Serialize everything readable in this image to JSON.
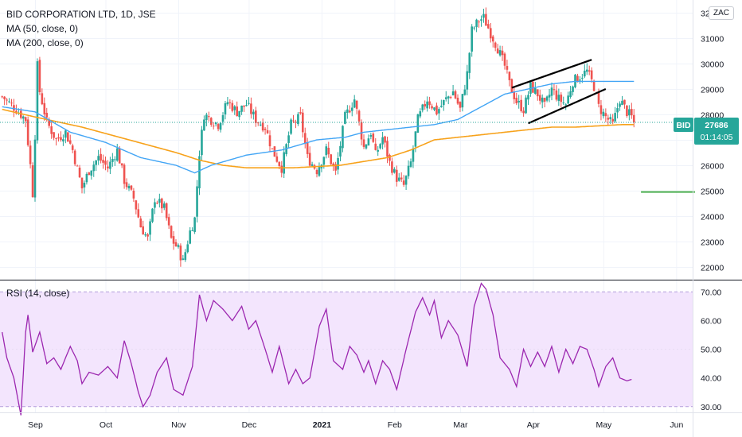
{
  "header": {
    "title": "BID CORPORATION LTD, 1D, JSE",
    "ma50": "MA (50, close, 0)",
    "ma200": "MA (200, close, 0)",
    "currency": "ZAC"
  },
  "price_tag": {
    "symbol": "BID",
    "price": "27686",
    "countdown": "01:14:05",
    "color": "#26a69a"
  },
  "rsi_panel": {
    "label": "RSI (14, close)"
  },
  "colors": {
    "up": "#26a69a",
    "down": "#ef5350",
    "ma50": "#42a5f5",
    "ma200": "#f7a21b",
    "rsi": "#9c27b0",
    "rsi_band": "#f3e5fd",
    "target_line": "#4caf50"
  },
  "chart_data": [
    {
      "type": "candlestick",
      "title": "BID CORPORATION LTD, 1D, JSE",
      "ylim": [
        21500,
        32500
      ],
      "y_ticks": [
        22000,
        23000,
        24000,
        25000,
        26000,
        27000,
        28000,
        29000,
        30000,
        31000,
        32000
      ],
      "x_ticks": [
        {
          "label": "Sep",
          "day": 0,
          "bold": false
        },
        {
          "label": "Oct",
          "day": 30,
          "bold": false
        },
        {
          "label": "Nov",
          "day": 61,
          "bold": false
        },
        {
          "label": "Dec",
          "day": 91,
          "bold": false
        },
        {
          "label": "2021",
          "day": 122,
          "bold": true
        },
        {
          "label": "Feb",
          "day": 153,
          "bold": false
        },
        {
          "label": "Mar",
          "day": 181,
          "bold": false
        },
        {
          "label": "Apr",
          "day": 212,
          "bold": false
        },
        {
          "label": "May",
          "day": 242,
          "bold": false
        },
        {
          "label": "Jun",
          "day": 273,
          "bold": false
        }
      ],
      "last_price": 27686,
      "anchors": [
        [
          -14,
          28700
        ],
        [
          -8,
          28200
        ],
        [
          -4,
          27800
        ],
        [
          -2,
          26000
        ],
        [
          -1,
          24900
        ],
        [
          0,
          27200
        ],
        [
          1,
          29900
        ],
        [
          2,
          28900
        ],
        [
          5,
          27700
        ],
        [
          9,
          27000
        ],
        [
          13,
          27300
        ],
        [
          16,
          26600
        ],
        [
          20,
          25100
        ],
        [
          23,
          25800
        ],
        [
          27,
          26300
        ],
        [
          31,
          25900
        ],
        [
          35,
          26600
        ],
        [
          38,
          25400
        ],
        [
          42,
          24700
        ],
        [
          45,
          23600
        ],
        [
          48,
          23100
        ],
        [
          51,
          24700
        ],
        [
          55,
          24300
        ],
        [
          58,
          23100
        ],
        [
          61,
          22700
        ],
        [
          63,
          22200
        ],
        [
          66,
          23400
        ],
        [
          68,
          23900
        ],
        [
          70,
          26500
        ],
        [
          72,
          28000
        ],
        [
          78,
          27600
        ],
        [
          82,
          28500
        ],
        [
          86,
          28100
        ],
        [
          90,
          28400
        ],
        [
          94,
          27800
        ],
        [
          98,
          27500
        ],
        [
          101,
          26600
        ],
        [
          105,
          25900
        ],
        [
          109,
          27600
        ],
        [
          113,
          27900
        ],
        [
          116,
          26300
        ],
        [
          120,
          25800
        ],
        [
          124,
          26600
        ],
        [
          128,
          25700
        ],
        [
          132,
          27900
        ],
        [
          136,
          28600
        ],
        [
          140,
          26700
        ],
        [
          143,
          27300
        ],
        [
          145,
          26400
        ],
        [
          148,
          27100
        ],
        [
          151,
          26100
        ],
        [
          154,
          25500
        ],
        [
          157,
          25200
        ],
        [
          160,
          26100
        ],
        [
          163,
          27800
        ],
        [
          167,
          28600
        ],
        [
          171,
          28100
        ],
        [
          175,
          28600
        ],
        [
          178,
          28900
        ],
        [
          181,
          28200
        ],
        [
          184,
          29600
        ],
        [
          186,
          31300
        ],
        [
          189,
          31700
        ],
        [
          191,
          31800
        ],
        [
          194,
          31200
        ],
        [
          197,
          30600
        ],
        [
          200,
          29900
        ],
        [
          202,
          29200
        ],
        [
          205,
          28500
        ],
        [
          208,
          28200
        ],
        [
          211,
          29100
        ],
        [
          214,
          28800
        ],
        [
          217,
          28300
        ],
        [
          220,
          29000
        ],
        [
          223,
          28600
        ],
        [
          226,
          28400
        ],
        [
          229,
          29300
        ],
        [
          232,
          29500
        ],
        [
          235,
          29700
        ],
        [
          238,
          29100
        ],
        [
          240,
          28300
        ],
        [
          243,
          27900
        ],
        [
          246,
          27600
        ],
        [
          249,
          28600
        ],
        [
          252,
          28100
        ],
        [
          254,
          27900
        ],
        [
          255,
          27686
        ]
      ],
      "ma50": [
        [
          -14,
          28300
        ],
        [
          0,
          28100
        ],
        [
          15,
          27300
        ],
        [
          30,
          26900
        ],
        [
          45,
          26300
        ],
        [
          60,
          26000
        ],
        [
          68,
          25700
        ],
        [
          75,
          26000
        ],
        [
          90,
          26400
        ],
        [
          105,
          26600
        ],
        [
          120,
          27000
        ],
        [
          132,
          27100
        ],
        [
          140,
          27300
        ],
        [
          150,
          27400
        ],
        [
          160,
          27500
        ],
        [
          170,
          27600
        ],
        [
          180,
          27800
        ],
        [
          190,
          28300
        ],
        [
          200,
          28800
        ],
        [
          210,
          29000
        ],
        [
          220,
          29200
        ],
        [
          230,
          29300
        ],
        [
          240,
          29300
        ],
        [
          250,
          29300
        ],
        [
          255,
          29300
        ]
      ],
      "ma200": [
        [
          -14,
          28200
        ],
        [
          0,
          27900
        ],
        [
          20,
          27500
        ],
        [
          40,
          27000
        ],
        [
          60,
          26500
        ],
        [
          70,
          26200
        ],
        [
          80,
          26000
        ],
        [
          90,
          25900
        ],
        [
          110,
          25900
        ],
        [
          130,
          26000
        ],
        [
          150,
          26300
        ],
        [
          160,
          26600
        ],
        [
          170,
          27000
        ],
        [
          180,
          27100
        ],
        [
          190,
          27200
        ],
        [
          200,
          27300
        ],
        [
          210,
          27400
        ],
        [
          220,
          27500
        ],
        [
          230,
          27500
        ],
        [
          240,
          27550
        ],
        [
          250,
          27600
        ],
        [
          255,
          27600
        ]
      ],
      "trendlines": [
        {
          "x1": 203,
          "y1": 29050,
          "x2": 237,
          "y2": 30150
        },
        {
          "x1": 210,
          "y1": 27650,
          "x2": 243,
          "y2": 29000
        }
      ],
      "target_line": {
        "x1": 258,
        "x2": 281,
        "y": 24950
      }
    },
    {
      "type": "line",
      "title": "RSI (14, close)",
      "ylim": [
        28,
        74
      ],
      "y_ticks": [
        30,
        40,
        50,
        60,
        70
      ],
      "bands": {
        "upper": 70,
        "lower": 30
      },
      "anchors": [
        [
          -14,
          56
        ],
        [
          -12,
          47
        ],
        [
          -9,
          40
        ],
        [
          -6,
          27
        ],
        [
          -4,
          56
        ],
        [
          -3,
          62
        ],
        [
          -1,
          49
        ],
        [
          2,
          56
        ],
        [
          5,
          45
        ],
        [
          8,
          47
        ],
        [
          11,
          43
        ],
        [
          15,
          51
        ],
        [
          18,
          46
        ],
        [
          20,
          38
        ],
        [
          23,
          42
        ],
        [
          27,
          41
        ],
        [
          31,
          44
        ],
        [
          35,
          40
        ],
        [
          38,
          53
        ],
        [
          41,
          45
        ],
        [
          44,
          35
        ],
        [
          46,
          30
        ],
        [
          49,
          34
        ],
        [
          52,
          42
        ],
        [
          56,
          47
        ],
        [
          59,
          36
        ],
        [
          63,
          34
        ],
        [
          67,
          44
        ],
        [
          70,
          69
        ],
        [
          73,
          60
        ],
        [
          76,
          67
        ],
        [
          80,
          64
        ],
        [
          84,
          60
        ],
        [
          88,
          65
        ],
        [
          91,
          57
        ],
        [
          94,
          60
        ],
        [
          98,
          50
        ],
        [
          101,
          42
        ],
        [
          104,
          51
        ],
        [
          108,
          38
        ],
        [
          111,
          43
        ],
        [
          114,
          38
        ],
        [
          117,
          40
        ],
        [
          121,
          58
        ],
        [
          124,
          64
        ],
        [
          127,
          46
        ],
        [
          131,
          43
        ],
        [
          134,
          51
        ],
        [
          137,
          48
        ],
        [
          140,
          42
        ],
        [
          142,
          46
        ],
        [
          145,
          38
        ],
        [
          148,
          46
        ],
        [
          151,
          43
        ],
        [
          154,
          36
        ],
        [
          158,
          50
        ],
        [
          162,
          63
        ],
        [
          165,
          68
        ],
        [
          168,
          62
        ],
        [
          170,
          67
        ],
        [
          173,
          54
        ],
        [
          176,
          60
        ],
        [
          180,
          55
        ],
        [
          184,
          44
        ],
        [
          187,
          65
        ],
        [
          190,
          73
        ],
        [
          192,
          71
        ],
        [
          195,
          62
        ],
        [
          198,
          47
        ],
        [
          202,
          43
        ],
        [
          205,
          37
        ],
        [
          208,
          50
        ],
        [
          211,
          44
        ],
        [
          214,
          49
        ],
        [
          217,
          44
        ],
        [
          220,
          51
        ],
        [
          223,
          42
        ],
        [
          226,
          50
        ],
        [
          229,
          45
        ],
        [
          232,
          51
        ],
        [
          235,
          50
        ],
        [
          238,
          43
        ],
        [
          240,
          37
        ],
        [
          243,
          44
        ],
        [
          246,
          47
        ],
        [
          249,
          40
        ],
        [
          252,
          39
        ],
        [
          254,
          39.5
        ]
      ]
    }
  ]
}
